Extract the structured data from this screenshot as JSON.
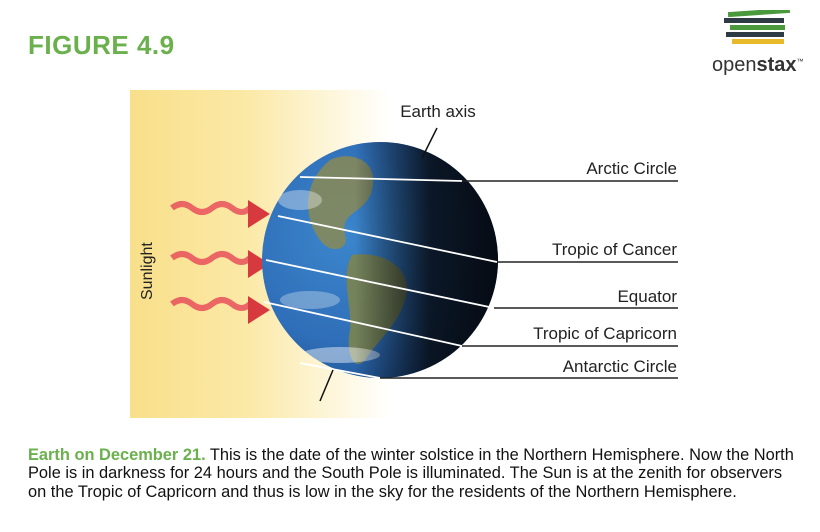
{
  "figure": {
    "title": "FIGURE 4.9"
  },
  "logo": {
    "text_regular": "open",
    "text_bold": "stax",
    "trademark": "™",
    "stripe_colors": [
      "#4a9a3d",
      "#2e3a44",
      "#4a9a3d",
      "#2e3a44",
      "#e8b92a"
    ]
  },
  "diagram": {
    "sunlight_label": "Sunlight",
    "axis_label": "Earth axis",
    "labels": {
      "arctic": "Arctic Circle",
      "cancer": "Tropic of Cancer",
      "equator": "Equator",
      "capricorn": "Tropic of Capricorn",
      "antarctic": "Antarctic Circle"
    },
    "colors": {
      "sunlight_gradient_start": "#f8df8a",
      "arrow": "#d63a3f",
      "ocean": "#2f6eb8",
      "night": "#0b0f18"
    }
  },
  "caption": {
    "lead": "Earth on December 21.",
    "body": " This is the date of the winter solstice in the Northern Hemisphere. Now the North Pole is in darkness for 24 hours and the South Pole is illuminated. The Sun is at the zenith for observers on the Tropic of Capricorn and thus is low in the sky for the residents of the Northern Hemisphere."
  }
}
